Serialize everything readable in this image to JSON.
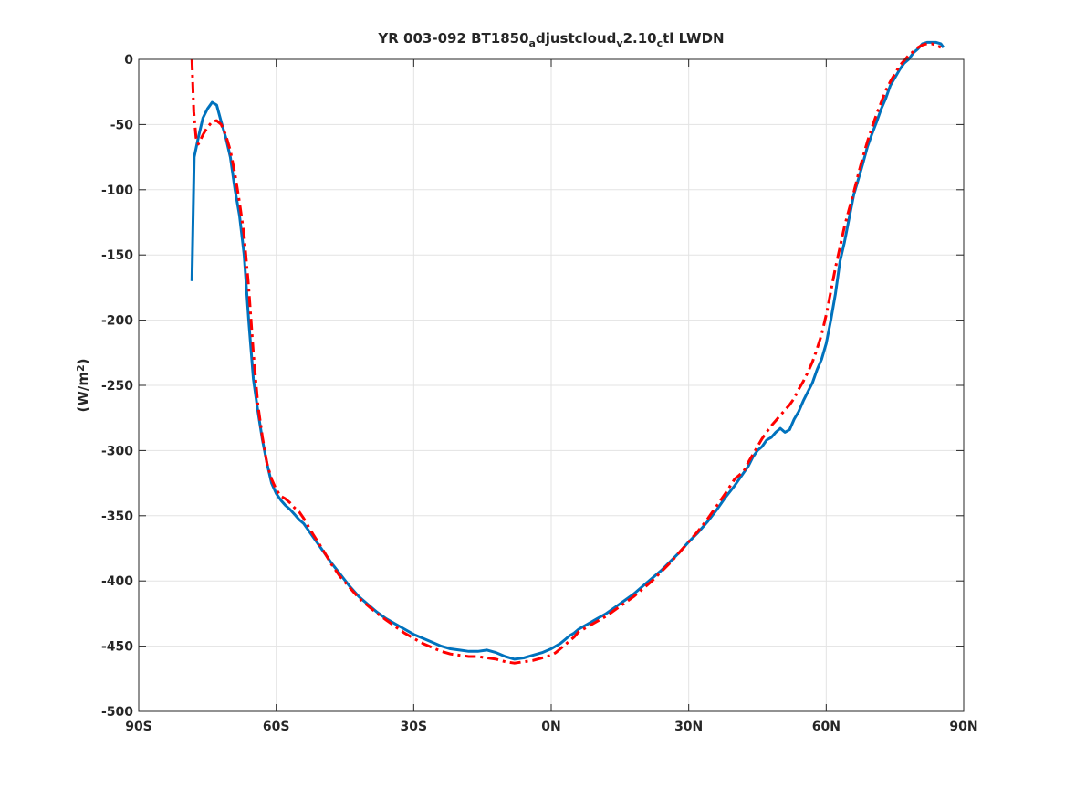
{
  "chart_data": {
    "type": "line",
    "title": {
      "segments": [
        {
          "text": "YR 003-092 BT1850",
          "sub": false
        },
        {
          "text": "a",
          "sub": true
        },
        {
          "text": "djustcloud",
          "sub": false
        },
        {
          "text": "v",
          "sub": true
        },
        {
          "text": "2.10",
          "sub": false
        },
        {
          "text": "c",
          "sub": true
        },
        {
          "text": "tl LWDN",
          "sub": false
        }
      ]
    },
    "xlabel": "",
    "ylabel": {
      "pre": "(W/m",
      "sup": "2",
      "post": ")"
    },
    "xlim": [
      -90,
      90
    ],
    "ylim": [
      -500,
      0
    ],
    "xticks": [
      {
        "value": -90,
        "label": "90S"
      },
      {
        "value": -60,
        "label": "60S"
      },
      {
        "value": -30,
        "label": "30S"
      },
      {
        "value": 0,
        "label": "0N"
      },
      {
        "value": 30,
        "label": "30N"
      },
      {
        "value": 60,
        "label": "60N"
      },
      {
        "value": 90,
        "label": "90N"
      }
    ],
    "yticks": [
      {
        "value": 0,
        "label": "0"
      },
      {
        "value": -50,
        "label": "-50"
      },
      {
        "value": -100,
        "label": "-100"
      },
      {
        "value": -150,
        "label": "-150"
      },
      {
        "value": -200,
        "label": "-200"
      },
      {
        "value": -250,
        "label": "-250"
      },
      {
        "value": -300,
        "label": "-300"
      },
      {
        "value": -350,
        "label": "-350"
      },
      {
        "value": -400,
        "label": "-400"
      },
      {
        "value": -450,
        "label": "-450"
      },
      {
        "value": -500,
        "label": "-500"
      }
    ],
    "grid": true,
    "box": true,
    "series": [
      {
        "color": "#0072BD",
        "style": "solid",
        "x": [
          -78.4,
          -77.9,
          -77.0,
          -76.0,
          -75.0,
          -74.0,
          -73.0,
          -72.0,
          -71.0,
          -70.0,
          -69.0,
          -68.0,
          -67.0,
          -66.0,
          -65.0,
          -64.0,
          -63.0,
          -62.0,
          -61.0,
          -60.0,
          -59.0,
          -58.0,
          -57.0,
          -56.0,
          -55.0,
          -54.0,
          -53.0,
          -52.0,
          -50.0,
          -48.0,
          -46.0,
          -44.0,
          -42.0,
          -40.0,
          -38.0,
          -36.0,
          -34.0,
          -32.0,
          -30.0,
          -28.0,
          -26.0,
          -24.0,
          -22.0,
          -20.0,
          -18.0,
          -16.0,
          -14.0,
          -12.0,
          -10.0,
          -8.0,
          -6.0,
          -4.0,
          -2.0,
          0.0,
          1.0,
          2.0,
          3.0,
          4.0,
          5.0,
          6.0,
          8.0,
          10.0,
          12.0,
          14.0,
          16.0,
          18.0,
          20.0,
          22.0,
          24.0,
          26.0,
          28.0,
          30.0,
          32.0,
          34.0,
          36.0,
          38.0,
          40.0,
          42.0,
          43.0,
          44.0,
          45.0,
          46.0,
          47.0,
          48.0,
          49.0,
          50.0,
          51.0,
          52.0,
          53.0,
          54.0,
          55.0,
          56.0,
          57.0,
          58.0,
          59.0,
          60.0,
          61.0,
          62.0,
          63.0,
          64.0,
          65.0,
          66.0,
          67.0,
          68.0,
          69.0,
          70.0,
          71.0,
          72.0,
          73.0,
          74.0,
          75.0,
          76.0,
          77.0,
          78.0,
          79.0,
          80.0,
          81.0,
          82.0,
          83.0,
          84.0,
          85.0,
          85.6
        ],
        "y": [
          -170,
          -75,
          -60,
          -45,
          -38,
          -33,
          -35,
          -48,
          -60,
          -75,
          -100,
          -120,
          -150,
          -200,
          -245,
          -270,
          -292,
          -310,
          -325,
          -333,
          -338,
          -342,
          -345,
          -349,
          -353,
          -356,
          -361,
          -366,
          -376,
          -386,
          -395,
          -404,
          -412,
          -418,
          -424,
          -429,
          -433,
          -437,
          -441,
          -444,
          -447,
          -450,
          -452,
          -453,
          -454,
          -454,
          -453,
          -455,
          -458,
          -460,
          -459,
          -457,
          -455,
          -452,
          -450,
          -448,
          -445,
          -442,
          -440,
          -437,
          -433,
          -429,
          -425,
          -420,
          -415,
          -410,
          -404,
          -398,
          -392,
          -385,
          -378,
          -370,
          -363,
          -355,
          -346,
          -336,
          -327,
          -317,
          -312,
          -305,
          -300,
          -297,
          -292,
          -290,
          -286,
          -283,
          -286,
          -284,
          -276,
          -270,
          -262,
          -255,
          -248,
          -238,
          -230,
          -218,
          -200,
          -180,
          -155,
          -140,
          -122,
          -104,
          -92,
          -80,
          -67,
          -57,
          -48,
          -38,
          -30,
          -20,
          -14,
          -8,
          -3,
          0,
          5,
          8,
          12,
          13,
          13,
          13,
          12,
          9
        ],
        "name": ""
      },
      {
        "color": "#FF0000",
        "style": "dashdot",
        "x": [
          -78.4,
          -78.0,
          -77.5,
          -77.0,
          -76.0,
          -75.0,
          -74.0,
          -73.0,
          -72.0,
          -71.0,
          -70.0,
          -69.0,
          -68.0,
          -67.0,
          -66.0,
          -65.0,
          -64.0,
          -63.0,
          -62.0,
          -61.0,
          -60.0,
          -59.0,
          -58.0,
          -57.0,
          -56.0,
          -55.0,
          -54.0,
          -53.0,
          -52.0,
          -50.0,
          -48.0,
          -46.0,
          -44.0,
          -42.0,
          -40.0,
          -38.0,
          -36.0,
          -34.0,
          -32.0,
          -30.0,
          -28.0,
          -26.0,
          -24.0,
          -22.0,
          -20.0,
          -18.0,
          -16.0,
          -14.0,
          -12.0,
          -10.0,
          -8.0,
          -6.0,
          -4.0,
          -2.0,
          0.0,
          1.0,
          2.0,
          3.0,
          4.0,
          5.0,
          6.0,
          8.0,
          10.0,
          12.0,
          14.0,
          16.0,
          18.0,
          20.0,
          22.0,
          24.0,
          26.0,
          28.0,
          30.0,
          32.0,
          34.0,
          36.0,
          38.0,
          40.0,
          42.0,
          43.0,
          44.0,
          45.0,
          46.0,
          47.0,
          48.0,
          49.0,
          50.0,
          51.0,
          52.0,
          53.0,
          54.0,
          55.0,
          56.0,
          57.0,
          58.0,
          59.0,
          60.0,
          61.0,
          62.0,
          63.0,
          64.0,
          65.0,
          66.0,
          67.0,
          68.0,
          69.0,
          70.0,
          71.0,
          72.0,
          73.0,
          74.0,
          75.0,
          76.0,
          77.0,
          78.0,
          79.0,
          80.0,
          81.0,
          82.0,
          83.0,
          84.0,
          85.0
        ],
        "y": [
          0,
          -40,
          -60,
          -65,
          -58,
          -52,
          -48,
          -47,
          -50,
          -58,
          -70,
          -88,
          -110,
          -135,
          -175,
          -225,
          -265,
          -290,
          -310,
          -322,
          -330,
          -335,
          -337,
          -340,
          -344,
          -347,
          -352,
          -358,
          -364,
          -375,
          -387,
          -397,
          -405,
          -413,
          -419,
          -425,
          -430,
          -435,
          -440,
          -444,
          -448,
          -451,
          -454,
          -456,
          -457,
          -458,
          -458,
          -459,
          -460,
          -462,
          -463,
          -462,
          -461,
          -459,
          -457,
          -455,
          -452,
          -449,
          -446,
          -443,
          -439,
          -435,
          -431,
          -427,
          -422,
          -417,
          -412,
          -406,
          -400,
          -393,
          -386,
          -378,
          -370,
          -362,
          -353,
          -343,
          -333,
          -322,
          -316,
          -309,
          -303,
          -297,
          -291,
          -286,
          -281,
          -277,
          -273,
          -269,
          -265,
          -260,
          -253,
          -247,
          -240,
          -232,
          -222,
          -211,
          -196,
          -178,
          -160,
          -144,
          -128,
          -115,
          -102,
          -88,
          -75,
          -63,
          -52,
          -42,
          -33,
          -24,
          -17,
          -11,
          -5,
          -1,
          3,
          6,
          9,
          11,
          12,
          12,
          11,
          9
        ],
        "name": ""
      }
    ]
  }
}
